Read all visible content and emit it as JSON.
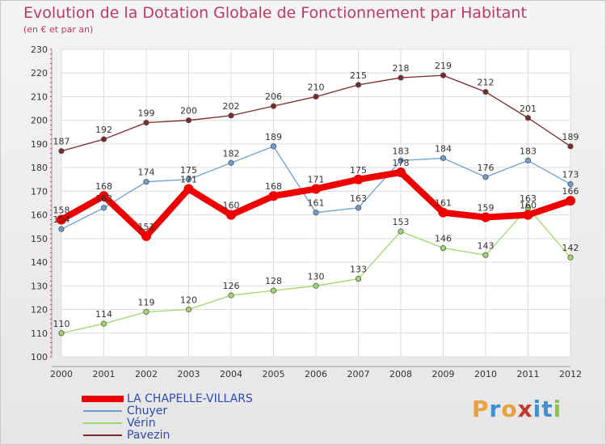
{
  "header": {
    "title": "Evolution de la Dotation Globale de Fonctionnement par Habitant",
    "subtitle": "(en € et par an)"
  },
  "logo": {
    "text": "Proxiti",
    "colors": [
      "#e9a23b",
      "#3f8fd1",
      "#e9a23b",
      "#c0392b",
      "#3f8fd1",
      "#3f8fd1",
      "#8bc34a"
    ]
  },
  "chart_data": {
    "type": "line",
    "title": "Evolution de la Dotation Globale de Fonctionnement par Habitant",
    "subtitle": "(en € et par an)",
    "xlabel": "",
    "ylabel": "",
    "categories": [
      "2000",
      "2001",
      "2002",
      "2003",
      "2004",
      "2005",
      "2006",
      "2007",
      "2008",
      "2009",
      "2010",
      "2011",
      "2012"
    ],
    "ylim": [
      100,
      230
    ],
    "yticks": [
      100,
      110,
      120,
      130,
      140,
      150,
      160,
      170,
      180,
      190,
      200,
      210,
      220,
      230
    ],
    "grid": true,
    "legend": "bottom-left",
    "series": [
      {
        "name": "LA CHAPELLE-VILLARS",
        "color": "#ee0000",
        "width": 8,
        "values": [
          158,
          168,
          151,
          171,
          160,
          168,
          171,
          175,
          178,
          161,
          159,
          160,
          166
        ],
        "labels": [
          "158",
          "168",
          "151",
          "171",
          "160",
          "168",
          "171",
          "175",
          "178",
          "161",
          "159",
          "160",
          "166"
        ]
      },
      {
        "name": "Chuyer",
        "color": "#6b9fd1",
        "width": 1.3,
        "values": [
          154,
          163,
          174,
          175,
          182,
          189,
          161,
          163,
          183,
          184,
          176,
          183,
          173
        ],
        "labels": [
          "154",
          "163",
          "174",
          "175",
          "182",
          "189",
          "161",
          "163",
          "183",
          "184",
          "176",
          "183",
          "173"
        ]
      },
      {
        "name": "Vérin",
        "color": "#9ed86a",
        "width": 1.3,
        "values": [
          110,
          114,
          119,
          120,
          126,
          128,
          130,
          133,
          153,
          146,
          143,
          163,
          142
        ],
        "labels": [
          "110",
          "114",
          "119",
          "120",
          "126",
          "128",
          "130",
          "133",
          "153",
          "146",
          "143",
          "163",
          "142"
        ]
      },
      {
        "name": "Pavezin",
        "color": "#7a2a2a",
        "width": 1.3,
        "values": [
          187,
          192,
          199,
          200,
          202,
          206,
          210,
          215,
          218,
          219,
          212,
          201,
          189
        ],
        "labels": [
          "187",
          "192",
          "199",
          "200",
          "202",
          "206",
          "210",
          "215",
          "218",
          "219",
          "212",
          "201",
          "189"
        ]
      }
    ]
  }
}
